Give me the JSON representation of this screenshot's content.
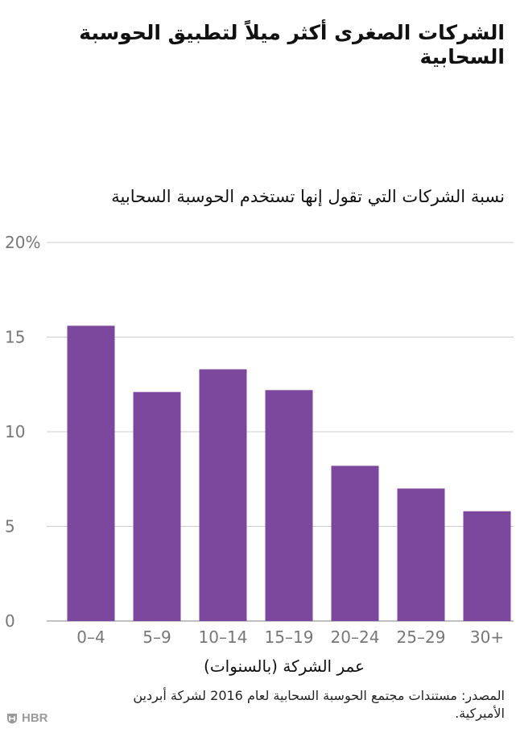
{
  "title": "الشركات الصغرى أكثر ميلاً لتطبيق الحوسبة السحابية",
  "source": "المصدر: مستندات مجتمع الحوسبة السحابية لعام 2016 لشركة أبردين الأميركية.",
  "logo": {
    "text": "HBR",
    "icon": "hbr-shield-icon"
  },
  "chart_data": {
    "type": "bar",
    "title": "الشركات الصغرى أكثر ميلاً لتطبيق الحوسبة السحابية",
    "ylabel": "نسبة الشركات التي تقول إنها تستخدم الحوسبة السحابية",
    "xlabel": "عمر الشركة (بالسنوات)",
    "categories": [
      "0–4",
      "5–9",
      "10–14",
      "15–19",
      "20–24",
      "25–29",
      "30+"
    ],
    "values": [
      15.6,
      12.1,
      13.3,
      12.2,
      8.2,
      7.0,
      5.8
    ],
    "ylim": [
      0,
      20
    ],
    "yticks": [
      0,
      5,
      10,
      15,
      20
    ],
    "ytick_labels": [
      "0",
      "5",
      "10",
      "15",
      "20%"
    ],
    "grid": true,
    "colors": {
      "bar": "#7b489d",
      "grid": "#cccccc",
      "tick_text": "#777777"
    }
  }
}
